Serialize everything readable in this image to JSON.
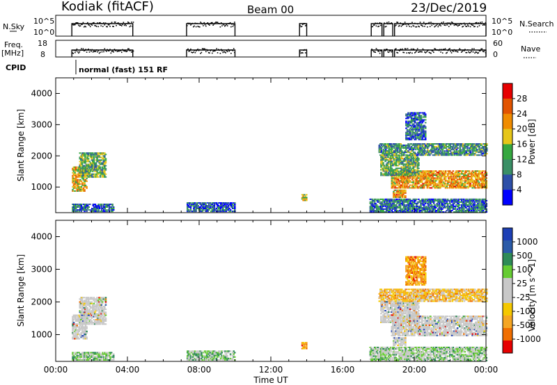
{
  "header": {
    "station": "Kodiak (fitACF)",
    "beam": "Beam 00",
    "date": "23/Dec/2019"
  },
  "status_panels": {
    "nsky": {
      "left_label": "N.Sky",
      "right_label": "N.Search",
      "left_ticks": [
        "10^5",
        "10^0"
      ],
      "right_ticks": [
        "10^5",
        "10^0"
      ]
    },
    "freq": {
      "left_label_1": "Freq.",
      "left_label_2": "[MHz]",
      "right_label": "Nave",
      "left_ticks": [
        "18",
        "8"
      ],
      "right_ticks": [
        "60",
        "0"
      ]
    },
    "cpid": {
      "label": "CPID",
      "text": "normal (fast) 151 RF"
    }
  },
  "colors": {
    "power_scale": [
      "#0000ff",
      "#2d4fa8",
      "#3a8f66",
      "#35a840",
      "#e6c619",
      "#f08c00",
      "#e25400",
      "#e60000"
    ],
    "velocity_scale": [
      "#e60000",
      "#f06e00",
      "#f5a623",
      "#f5c800",
      "#c8c8c8",
      "#c8c8c8",
      "#66cc33",
      "#2e8b57",
      "#2b5ba8",
      "#1d3fb5"
    ]
  },
  "chart_data": [
    {
      "type": "heatmap",
      "name": "Power",
      "xlabel": "",
      "ylabel": "Slant Range [km]",
      "x_unit": "hours UT",
      "xlim": [
        0,
        24
      ],
      "ylim": [
        180,
        4500
      ],
      "yticks": [
        1000,
        2000,
        3000,
        4000
      ],
      "colorbar": {
        "label": "Power [dB]",
        "min": 0,
        "max": 32,
        "ticks": [
          "4",
          "8",
          "12",
          "16",
          "20",
          "24",
          "28"
        ]
      },
      "regions": [
        {
          "t0": 0.9,
          "t1": 1.7,
          "r0": 850,
          "r1": 1650,
          "level": 0.6
        },
        {
          "t0": 1.3,
          "t1": 2.8,
          "r0": 1300,
          "r1": 2100,
          "level": 0.4
        },
        {
          "t0": 0.9,
          "t1": 3.2,
          "r0": 200,
          "r1": 450,
          "level": 0.2
        },
        {
          "t0": 7.3,
          "t1": 10.0,
          "r0": 200,
          "r1": 500,
          "level": 0.15
        },
        {
          "t0": 13.7,
          "t1": 14.0,
          "r0": 550,
          "r1": 750,
          "level": 0.55
        },
        {
          "t0": 17.5,
          "t1": 24.0,
          "r0": 180,
          "r1": 600,
          "level": 0.2
        },
        {
          "t0": 18.7,
          "t1": 24.0,
          "r0": 950,
          "r1": 1500,
          "level": 0.7
        },
        {
          "t0": 18.1,
          "t1": 20.2,
          "r0": 1350,
          "r1": 2000,
          "level": 0.4
        },
        {
          "t0": 18.8,
          "t1": 19.5,
          "r0": 650,
          "r1": 900,
          "level": 0.7
        },
        {
          "t0": 18.0,
          "t1": 24.0,
          "r0": 2000,
          "r1": 2400,
          "level": 0.3
        },
        {
          "t0": 19.5,
          "t1": 20.6,
          "r0": 2500,
          "r1": 3400,
          "level": 0.2
        }
      ]
    },
    {
      "type": "heatmap",
      "name": "Velocity",
      "xlabel": "Time UT",
      "ylabel": "Slant Range [km]",
      "x_unit": "hours UT",
      "xlim": [
        0,
        24
      ],
      "ylim": [
        180,
        4500
      ],
      "xticks": [
        "00:00",
        "04:00",
        "08:00",
        "12:00",
        "16:00",
        "20:00",
        "00:00"
      ],
      "yticks": [
        1000,
        2000,
        3000,
        4000
      ],
      "colorbar": {
        "label": "Velocity [m s^-1]",
        "ticks": [
          "1000",
          "500",
          "100",
          "25",
          "-25",
          "-100",
          "-500",
          "-1000"
        ]
      },
      "regions": [
        {
          "t0": 0.9,
          "t1": 1.7,
          "r0": 850,
          "r1": 1600,
          "level": 0.5
        },
        {
          "t0": 1.3,
          "t1": 2.8,
          "r0": 1300,
          "r1": 2150,
          "level": 0.5
        },
        {
          "t0": 0.9,
          "t1": 3.2,
          "r0": 200,
          "r1": 450,
          "level": 0.65
        },
        {
          "t0": 7.3,
          "t1": 10.0,
          "r0": 200,
          "r1": 500,
          "level": 0.65
        },
        {
          "t0": 13.7,
          "t1": 14.0,
          "r0": 550,
          "r1": 750,
          "level": 0.2
        },
        {
          "t0": 17.5,
          "t1": 24.0,
          "r0": 180,
          "r1": 600,
          "level": 0.6
        },
        {
          "t0": 18.7,
          "t1": 24.0,
          "r0": 950,
          "r1": 1550,
          "level": 0.5
        },
        {
          "t0": 18.1,
          "t1": 20.2,
          "r0": 1350,
          "r1": 2000,
          "level": 0.5
        },
        {
          "t0": 18.8,
          "t1": 19.5,
          "r0": 650,
          "r1": 900,
          "level": 0.5
        },
        {
          "t0": 18.0,
          "t1": 24.0,
          "r0": 2000,
          "r1": 2400,
          "level": 0.3
        },
        {
          "t0": 19.5,
          "t1": 20.6,
          "r0": 2500,
          "r1": 3400,
          "level": 0.2
        }
      ]
    }
  ]
}
